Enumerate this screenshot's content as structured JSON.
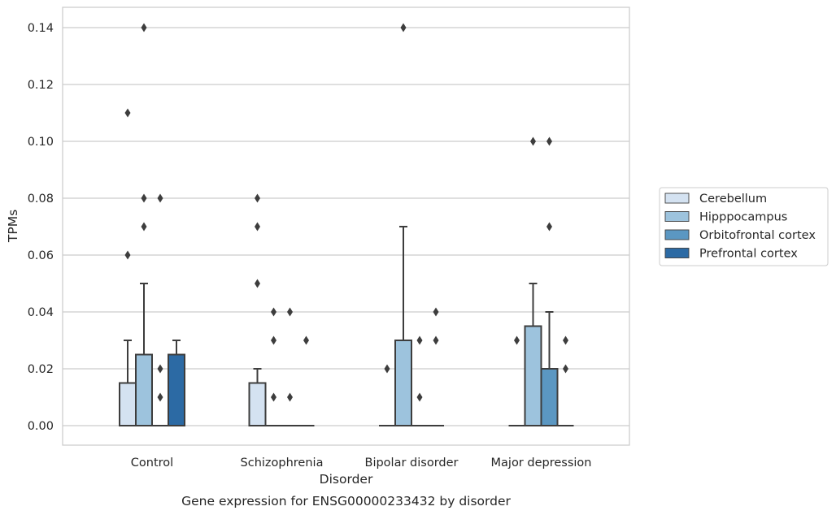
{
  "chart_data": {
    "type": "boxplot",
    "title": "Gene expression for ENSG00000233432 by disorder",
    "xlabel": "Disorder",
    "ylabel": "TPMs",
    "ylim": [
      -0.007,
      0.147
    ],
    "yticks": [
      0.0,
      0.02,
      0.04,
      0.06,
      0.08,
      0.1,
      0.12,
      0.14
    ],
    "ytick_labels": [
      "0.00",
      "0.02",
      "0.04",
      "0.06",
      "0.08",
      "0.10",
      "0.12",
      "0.14"
    ],
    "grid": "horizontal",
    "legend_position": "outside-right",
    "categories": [
      "Control",
      "Schizophrenia",
      "Bipolar disorder",
      "Major depression"
    ],
    "series": [
      {
        "name": "Cerebellum",
        "color": "#d4e2f1",
        "boxes": [
          {
            "q1": 0.0,
            "median": 0.0,
            "q3": 0.015,
            "whisker_low": 0.0,
            "whisker_high": 0.03,
            "outliers": [
              0.06,
              0.11
            ]
          },
          {
            "q1": 0.0,
            "median": 0.0,
            "q3": 0.015,
            "whisker_low": 0.0,
            "whisker_high": 0.02,
            "outliers": [
              0.05,
              0.07,
              0.08
            ]
          },
          {
            "q1": 0.0,
            "median": 0.0,
            "q3": 0.0,
            "whisker_low": 0.0,
            "whisker_high": 0.0,
            "outliers": [
              0.02
            ]
          },
          {
            "q1": 0.0,
            "median": 0.0,
            "q3": 0.0,
            "whisker_low": 0.0,
            "whisker_high": 0.0,
            "outliers": [
              0.03
            ]
          }
        ]
      },
      {
        "name": "Hipppocampus",
        "color": "#9dc3dd",
        "boxes": [
          {
            "q1": 0.0,
            "median": 0.0,
            "q3": 0.025,
            "whisker_low": 0.0,
            "whisker_high": 0.05,
            "outliers": [
              0.07,
              0.08,
              0.14
            ]
          },
          {
            "q1": 0.0,
            "median": 0.0,
            "q3": 0.0,
            "whisker_low": 0.0,
            "whisker_high": 0.0,
            "outliers": [
              0.01,
              0.03,
              0.04
            ]
          },
          {
            "q1": 0.0,
            "median": 0.0,
            "q3": 0.03,
            "whisker_low": 0.0,
            "whisker_high": 0.07,
            "outliers": [
              0.14
            ]
          },
          {
            "q1": 0.0,
            "median": 0.0,
            "q3": 0.035,
            "whisker_low": 0.0,
            "whisker_high": 0.05,
            "outliers": [
              0.1
            ]
          }
        ]
      },
      {
        "name": "Orbitofrontal cortex",
        "color": "#5b97c2",
        "boxes": [
          {
            "q1": 0.0,
            "median": 0.0,
            "q3": 0.0,
            "whisker_low": 0.0,
            "whisker_high": 0.0,
            "outliers": [
              0.01,
              0.02,
              0.08
            ]
          },
          {
            "q1": 0.0,
            "median": 0.0,
            "q3": 0.0,
            "whisker_low": 0.0,
            "whisker_high": 0.0,
            "outliers": [
              0.01,
              0.04
            ]
          },
          {
            "q1": 0.0,
            "median": 0.0,
            "q3": 0.0,
            "whisker_low": 0.0,
            "whisker_high": 0.0,
            "outliers": [
              0.01,
              0.03
            ]
          },
          {
            "q1": 0.0,
            "median": 0.0,
            "q3": 0.02,
            "whisker_low": 0.0,
            "whisker_high": 0.04,
            "outliers": [
              0.07,
              0.1
            ]
          }
        ]
      },
      {
        "name": "Prefrontal cortex",
        "color": "#2c6aa4",
        "boxes": [
          {
            "q1": 0.0,
            "median": 0.0,
            "q3": 0.025,
            "whisker_low": 0.0,
            "whisker_high": 0.03,
            "outliers": []
          },
          {
            "q1": 0.0,
            "median": 0.0,
            "q3": 0.0,
            "whisker_low": 0.0,
            "whisker_high": 0.0,
            "outliers": [
              0.03
            ]
          },
          {
            "q1": 0.0,
            "median": 0.0,
            "q3": 0.0,
            "whisker_low": 0.0,
            "whisker_high": 0.0,
            "outliers": [
              0.03,
              0.04
            ]
          },
          {
            "q1": 0.0,
            "median": 0.0,
            "q3": 0.0,
            "whisker_low": 0.0,
            "whisker_high": 0.0,
            "outliers": [
              0.02,
              0.03
            ]
          }
        ]
      }
    ]
  }
}
